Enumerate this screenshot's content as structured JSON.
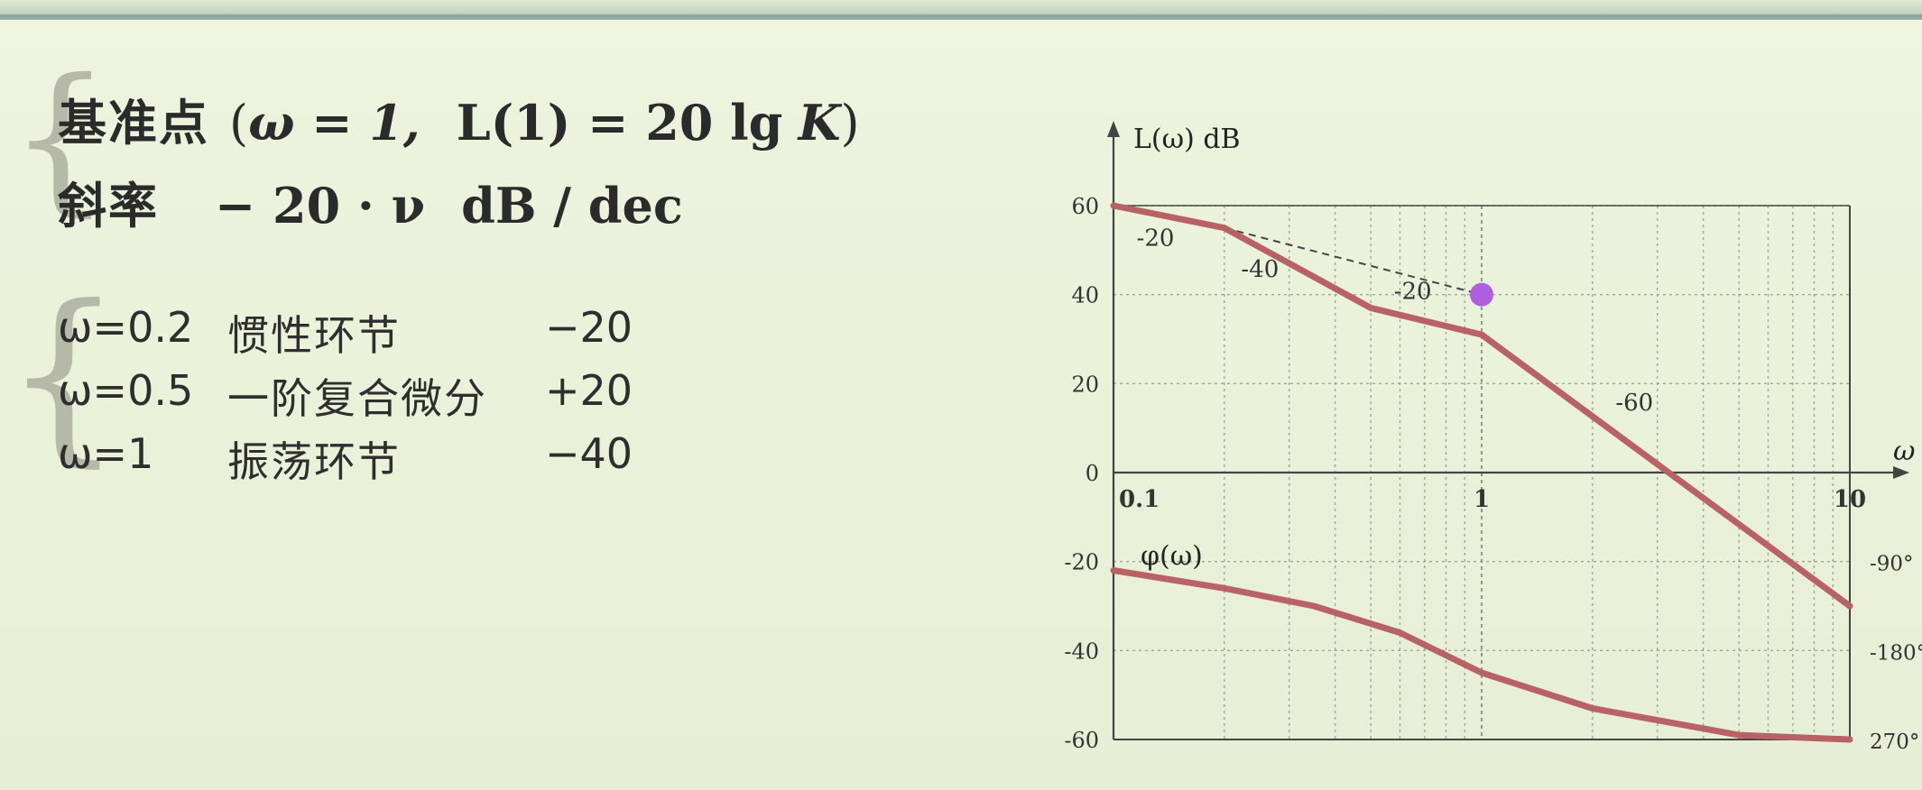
{
  "formulas": {
    "reference": {
      "label": "基准点",
      "open": "(",
      "omega_eq": "ω = 1,",
      "L1": "L(1) = 20 lg",
      "K": "K",
      "close": ")"
    },
    "slope": {
      "label": "斜率",
      "value": "− 20 · ν",
      "unit": "dB / dec"
    }
  },
  "turning_points": [
    {
      "omega": "ω=0.2",
      "name": "惯性环节",
      "slope": "−20"
    },
    {
      "omega": "ω=0.5",
      "name": "一阶复合微分",
      "slope": "+20"
    },
    {
      "omega": "ω=1",
      "name": "振荡环节",
      "slope": "−40"
    }
  ],
  "chart_data": {
    "type": "line",
    "y_axis_label": "L(ω)  dB",
    "x_axis_label": "ω",
    "phase_label": "φ(ω)",
    "x_scale": "log",
    "xlim": [
      0.1,
      10
    ],
    "ylim": [
      -60,
      60
    ],
    "x_ticks": [
      0.1,
      1,
      10
    ],
    "x_tick_labels": [
      "0.1",
      "1",
      "10"
    ],
    "y_ticks": [
      60,
      40,
      20,
      0,
      -20,
      -40,
      -60
    ],
    "y_tick_labels": [
      "60",
      "40",
      "20",
      "0",
      "-20",
      "-40",
      "-60"
    ],
    "phase_tick_labels": [
      "-90°",
      "-180°",
      "270°"
    ],
    "phase_tick_values": [
      -20,
      -40,
      -60
    ],
    "grid": true,
    "series": [
      {
        "values": [
          [
            0.1,
            60
          ],
          [
            0.2,
            55
          ],
          [
            0.5,
            37
          ],
          [
            1,
            31
          ],
          [
            10,
            -30
          ]
        ]
      },
      {
        "values": [
          [
            0.1,
            -22
          ],
          [
            0.2,
            -26
          ],
          [
            0.35,
            -30
          ],
          [
            0.6,
            -36
          ],
          [
            1,
            -45
          ],
          [
            2,
            -53
          ],
          [
            5,
            -59
          ],
          [
            10,
            -60
          ]
        ]
      }
    ],
    "dashed_asymptote": [
      [
        0.2,
        55
      ],
      [
        1,
        40
      ]
    ],
    "marker": {
      "x": 1,
      "y": 40,
      "color": "#b05fe0"
    },
    "segment_labels": [
      {
        "text": "-20",
        "x": 0.13,
        "y": 51
      },
      {
        "text": "-40",
        "x": 0.25,
        "y": 44
      },
      {
        "text": "-20",
        "x": 0.65,
        "y": 39
      },
      {
        "text": "-60",
        "x": 2.6,
        "y": 14
      }
    ],
    "colors": {
      "curve": "#b86265",
      "grid": "#8a8a8a",
      "axis": "#444444"
    }
  }
}
